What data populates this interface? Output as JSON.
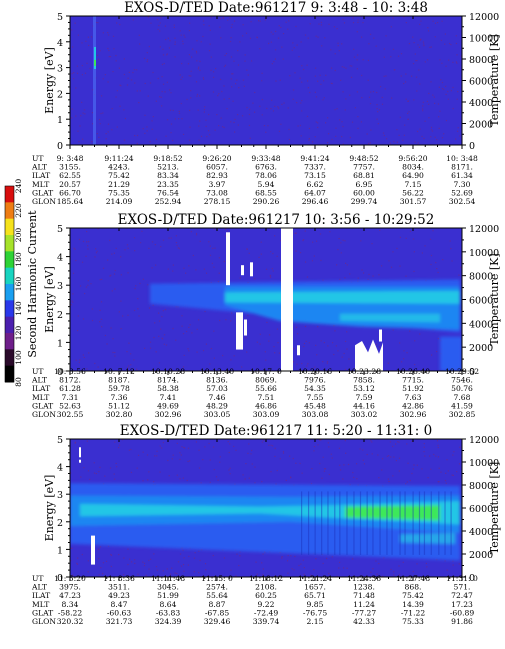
{
  "colors": {
    "background": "#3a2fd0",
    "noise": "#6a2a8e",
    "band_outer": "#2a5cf0",
    "band_mid": "#1e86f2",
    "band_inner": "#24c6e6",
    "band_peak": "#3ce85a",
    "gap": "#ffffff"
  },
  "colorbar": {
    "label": "Second Harmonic Current",
    "ticks": [
      "240",
      "220",
      "200",
      "180",
      "160",
      "140",
      "120",
      "100",
      "80"
    ],
    "stops": [
      "#d80e0e",
      "#ee7d14",
      "#f5e21c",
      "#a6e22a",
      "#2ed336",
      "#18d4c0",
      "#1a9ff0",
      "#2a38ea",
      "#4b1fae",
      "#6e1e8a",
      "#2a0a2a",
      "#000000"
    ]
  },
  "panels": [
    {
      "title": "EXOS-D/TED   Date:961217  9: 3:48 - 10: 3:48",
      "ylabel": "Energy [eV]",
      "y2label": "Temperature [K]",
      "yticks": [
        "0",
        "1",
        "2",
        "3",
        "4",
        "5"
      ],
      "y2ticks": [
        "0",
        "2000",
        "4000",
        "6000",
        "8000",
        "10000",
        "12000"
      ],
      "rows": [
        {
          "label": "UT",
          "values": [
            "9: 3:48",
            "9:11:24",
            "9:18:52",
            "9:26:20",
            "9:33:48",
            "9:41:24",
            "9:48:52",
            "9:56:20",
            "10: 3:48"
          ]
        },
        {
          "label": "ALT",
          "values": [
            "3155.",
            "4243.",
            "5213.",
            "6057.",
            "6763.",
            "7337.",
            "7757.",
            "8034.",
            "8171."
          ]
        },
        {
          "label": "ILAT",
          "values": [
            "62.55",
            "75.42",
            "83.34",
            "82.93",
            "78.06",
            "73.15",
            "68.81",
            "64.90",
            "61.34"
          ]
        },
        {
          "label": "MLT",
          "values": [
            "20.57",
            "21.29",
            "23.35",
            "3.97",
            "5.94",
            "6.62",
            "6.95",
            "7.15",
            "7.30"
          ]
        },
        {
          "label": "GLAT",
          "values": [
            "66.70",
            "75.35",
            "76.54",
            "73.08",
            "68.55",
            "64.07",
            "60.00",
            "56.22",
            "52.69"
          ]
        },
        {
          "label": "GLON",
          "values": [
            "185.64",
            "214.09",
            "252.94",
            "278.15",
            "290.26",
            "296.46",
            "299.74",
            "301.57",
            "302.54"
          ]
        }
      ]
    },
    {
      "title": "EXOS-D/TED   Date:961217  10: 3:56 - 10:29:52",
      "ylabel": "Energy [eV]",
      "y2label": "Temperature [K]",
      "yticks": [
        "0",
        "1",
        "2",
        "3",
        "4",
        "5"
      ],
      "y2ticks": [
        "0",
        "2000",
        "4000",
        "6000",
        "8000",
        "10000",
        "12000"
      ],
      "rows": [
        {
          "label": "UT",
          "values": [
            "10: 3:56",
            "10: 7:12",
            "10:10:28",
            "10:13:40",
            "10:17: 0",
            "10:20:16",
            "10:23:28",
            "10:26:40",
            "10:29:52"
          ]
        },
        {
          "label": "ALT",
          "values": [
            "8172.",
            "8187.",
            "8174.",
            "8136.",
            "8069.",
            "7976.",
            "7858.",
            "7715.",
            "7546."
          ]
        },
        {
          "label": "ILAT",
          "values": [
            "61.28",
            "59.78",
            "58.38",
            "57.03",
            "55.66",
            "54.35",
            "53.12",
            "51.92",
            "50.76"
          ]
        },
        {
          "label": "MLT",
          "values": [
            "7.31",
            "7.36",
            "7.41",
            "7.46",
            "7.51",
            "7.55",
            "7.59",
            "7.63",
            "7.68"
          ]
        },
        {
          "label": "GLAT",
          "values": [
            "52.63",
            "51.12",
            "49.69",
            "48.29",
            "46.86",
            "45.48",
            "44.16",
            "42.86",
            "41.59"
          ]
        },
        {
          "label": "GLON",
          "values": [
            "302.55",
            "302.80",
            "302.96",
            "303.05",
            "303.09",
            "303.08",
            "303.02",
            "302.96",
            "302.85"
          ]
        }
      ]
    },
    {
      "title": "EXOS-D/TED   Date:961217  11: 5:20 - 11:31: 0",
      "ylabel": "Energy [eV]",
      "y2label": "Temperature [K]",
      "yticks": [
        "0",
        "1",
        "2",
        "3",
        "4",
        "5"
      ],
      "y2ticks": [
        "0",
        "2000",
        "4000",
        "6000",
        "8000",
        "10000",
        "12000"
      ],
      "rows": [
        {
          "label": "UT",
          "values": [
            "11: 5:20",
            "11: 8:36",
            "11:11:48",
            "11:15: 0",
            "11:18:12",
            "11:21:24",
            "11:24:36",
            "11:27:48",
            "11:31: 0"
          ]
        },
        {
          "label": "ALT",
          "values": [
            "3975.",
            "3511.",
            "3045.",
            "2574.",
            "2108.",
            "1657.",
            "1238.",
            "868.",
            "571."
          ]
        },
        {
          "label": "ILAT",
          "values": [
            "47.23",
            "49.23",
            "51.99",
            "55.64",
            "60.25",
            "65.71",
            "71.48",
            "75.42",
            "72.47"
          ]
        },
        {
          "label": "MLT",
          "values": [
            "8.34",
            "8.47",
            "8.64",
            "8.87",
            "9.22",
            "9.85",
            "11.24",
            "14.39",
            "17.23"
          ]
        },
        {
          "label": "GLAT",
          "values": [
            "-58.22",
            "-60.63",
            "-63.83",
            "-67.85",
            "-72.49",
            "-76.75",
            "-77.27",
            "-71.22",
            "-60.89"
          ]
        },
        {
          "label": "GLON",
          "values": [
            "320.32",
            "321.73",
            "324.39",
            "329.46",
            "339.74",
            "2.15",
            "42.33",
            "75.33",
            "91.86"
          ]
        }
      ]
    }
  ],
  "chart_data": [
    {
      "type": "heatmap",
      "title": "EXOS-D/TED   Date:961217  9: 3:48 - 10: 3:48",
      "xlabel": "",
      "ylabel": "Energy [eV]",
      "y2label": "Temperature [K]",
      "ylim": [
        0,
        5
      ],
      "y2lim": [
        0,
        12000
      ],
      "x_tick_labels": [
        "9: 3:48",
        "9:11:24",
        "9:18:52",
        "9:26:20",
        "9:33:48",
        "9:41:24",
        "9:48:52",
        "9:56:20",
        "10: 3:48"
      ],
      "colorscale_label": "Second Harmonic Current",
      "colorscale_range": [
        80,
        240
      ],
      "grid": false
    },
    {
      "type": "heatmap",
      "title": "EXOS-D/TED   Date:961217  10: 3:56 - 10:29:52",
      "xlabel": "",
      "ylabel": "Energy [eV]",
      "y2label": "Temperature [K]",
      "ylim": [
        0,
        5
      ],
      "y2lim": [
        0,
        12000
      ],
      "x_tick_labels": [
        "10: 3:56",
        "10: 7:12",
        "10:10:28",
        "10:13:40",
        "10:17: 0",
        "10:20:16",
        "10:23:28",
        "10:26:40",
        "10:29:52"
      ],
      "colorscale_label": "Second Harmonic Current",
      "colorscale_range": [
        80,
        240
      ],
      "grid": false
    },
    {
      "type": "heatmap",
      "title": "EXOS-D/TED   Date:961217  11: 5:20 - 11:31: 0",
      "xlabel": "",
      "ylabel": "Energy [eV]",
      "y2label": "Temperature [K]",
      "ylim": [
        0,
        5
      ],
      "y2lim": [
        0,
        12000
      ],
      "x_tick_labels": [
        "11: 5:20",
        "11: 8:36",
        "11:11:48",
        "11:15: 0",
        "11:18:12",
        "11:21:24",
        "11:24:36",
        "11:27:48",
        "11:31: 0"
      ],
      "colorscale_label": "Second Harmonic Current",
      "colorscale_range": [
        80,
        240
      ],
      "grid": false
    }
  ]
}
